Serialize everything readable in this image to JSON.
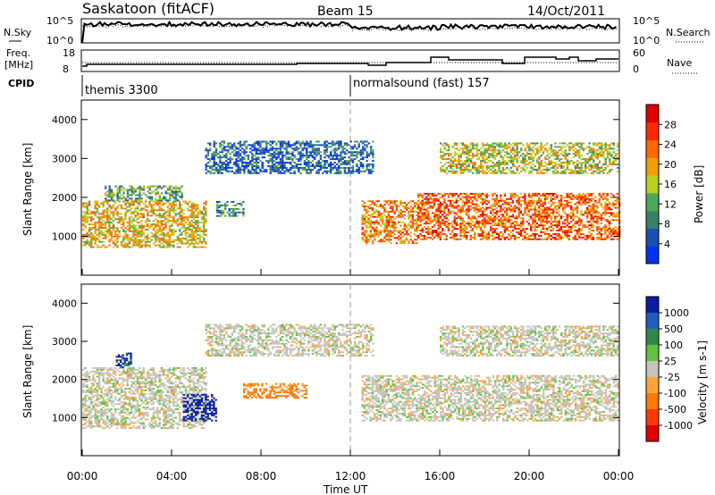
{
  "header": {
    "station": "Saskatoon  (fitACF)",
    "beam": "Beam 15",
    "date": "14/Oct/2011"
  },
  "noise_panel": {
    "left_label": "N.Sky",
    "left_ticks": [
      "10^5",
      "10^0"
    ],
    "right_ticks": [
      "10^5",
      "10^0"
    ],
    "right_label": "N.Search"
  },
  "freq_panel": {
    "left_label_line1": "Freq.",
    "left_label_line2": "[MHz]",
    "left_ticks": [
      "18",
      "8"
    ],
    "right_ticks": [
      "60",
      "0"
    ],
    "right_label": "Nave"
  },
  "cpid": {
    "label": "CPID",
    "segments": [
      {
        "name": "themis 3300",
        "start_h": 0
      },
      {
        "name": "normalsound (fast) 157",
        "start_h": 12
      }
    ]
  },
  "x_axis": {
    "label": "Time UT",
    "ticks": [
      "00:00",
      "04:00",
      "08:00",
      "12:00",
      "16:00",
      "20:00",
      "00:00"
    ],
    "range_h": [
      0,
      24
    ]
  },
  "colors": {
    "power_scale": [
      "#0033ee",
      "#1c4fb4",
      "#3a7f66",
      "#4fa85a",
      "#b9d11d",
      "#f0a000",
      "#ff6a00",
      "#ff2a00",
      "#e00000"
    ],
    "velocity_scale": [
      "#0b1ea0",
      "#1f5fc0",
      "#2f8a4a",
      "#60c040",
      "#c4c4bc",
      "#ffa23a",
      "#ff7a00",
      "#ff3a00",
      "#e00000"
    ],
    "scatter_grey": "#c4c4bc"
  },
  "chart_data": [
    {
      "type": "heatmap",
      "name": "power",
      "ylabel": "Slant Range [km]",
      "yticks": [
        "1000",
        "2000",
        "3000",
        "4000"
      ],
      "ylim": [
        0,
        4500
      ],
      "colorbar_label": "Power [dB]",
      "colorbar_ticks": [
        "4",
        "8",
        "12",
        "16",
        "20",
        "24",
        "28"
      ],
      "colorbar_range": [
        0,
        32
      ],
      "regions": [
        {
          "t": [
            0.0,
            5.5
          ],
          "r": [
            700,
            1900
          ],
          "value": 18
        },
        {
          "t": [
            1.0,
            4.5
          ],
          "r": [
            1900,
            2300
          ],
          "value": 12
        },
        {
          "t": [
            5.5,
            13.0
          ],
          "r": [
            2600,
            3450
          ],
          "value": 6
        },
        {
          "t": [
            6.0,
            7.2
          ],
          "r": [
            1500,
            1900
          ],
          "value": 10
        },
        {
          "t": [
            12.5,
            15.0
          ],
          "r": [
            800,
            1900
          ],
          "value": 22
        },
        {
          "t": [
            15.0,
            24.0
          ],
          "r": [
            900,
            2100
          ],
          "value": 24
        },
        {
          "t": [
            16.0,
            24.0
          ],
          "r": [
            2600,
            3400
          ],
          "value": 16
        }
      ]
    },
    {
      "type": "heatmap",
      "name": "velocity",
      "ylabel": "Slant Range [km]",
      "yticks": [
        "1000",
        "2000",
        "3000",
        "4000"
      ],
      "ylim": [
        0,
        4500
      ],
      "colorbar_label": "Velocity [m s-1]",
      "colorbar_ticks": [
        "1000",
        "500",
        "100",
        "25",
        "-25",
        "-100",
        "-500",
        "-1000"
      ],
      "regions": [
        {
          "t": [
            0.0,
            5.5
          ],
          "r": [
            700,
            2300
          ],
          "value": 0
        },
        {
          "t": [
            4.5,
            6.0
          ],
          "r": [
            900,
            1600
          ],
          "value": 600
        },
        {
          "t": [
            1.5,
            2.2
          ],
          "r": [
            2300,
            2700
          ],
          "value": 500
        },
        {
          "t": [
            5.5,
            13.0
          ],
          "r": [
            2600,
            3450
          ],
          "value": 0
        },
        {
          "t": [
            7.2,
            10.0
          ],
          "r": [
            1500,
            1900
          ],
          "value": -150
        },
        {
          "t": [
            12.5,
            24.0
          ],
          "r": [
            900,
            2100
          ],
          "value": 0
        },
        {
          "t": [
            16.0,
            24.0
          ],
          "r": [
            2600,
            3400
          ],
          "value": 0
        }
      ]
    }
  ]
}
